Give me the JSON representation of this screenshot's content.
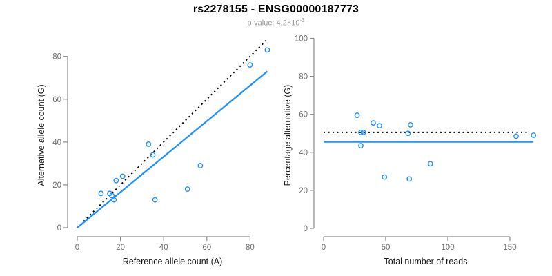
{
  "header": {
    "title": "rs2278155 - ENSG00000187773",
    "subtitle_text": "p-value: 4.2×10",
    "subtitle_superscript": "-3"
  },
  "colors": {
    "accent_blue": "#1E90FF",
    "dotted_black": "#000000",
    "axis_gray": "#8c8c8c",
    "tick_label_gray": "#6e6e6e",
    "axis_title_color": "#1a1a1a",
    "background": "#ffffff"
  },
  "chart_data": [
    {
      "type": "scatter",
      "panel": "left",
      "xlabel": "Reference allele count (A)",
      "ylabel": "Alternative allele count (G)",
      "xlim": [
        0,
        92
      ],
      "ylim": [
        0,
        88
      ],
      "xticks": [
        0,
        20,
        40,
        60,
        80
      ],
      "yticks": [
        0,
        20,
        40,
        60,
        80
      ],
      "grid": false,
      "legend": null,
      "marker": "open-circle",
      "points": [
        [
          11,
          16
        ],
        [
          15,
          16
        ],
        [
          16,
          15
        ],
        [
          17,
          13
        ],
        [
          18,
          22
        ],
        [
          21,
          24
        ],
        [
          33,
          39
        ],
        [
          35,
          34
        ],
        [
          36,
          13
        ],
        [
          51,
          18
        ],
        [
          57,
          29
        ],
        [
          80,
          76
        ],
        [
          88,
          83
        ]
      ],
      "lines": [
        {
          "id": "identity-line",
          "style": "dotted",
          "x1": 0,
          "y1": 0,
          "x2": 88,
          "y2": 88
        },
        {
          "id": "fit-line",
          "style": "solid",
          "x1": 0,
          "y1": 0,
          "x2": 88,
          "y2": 73
        }
      ]
    },
    {
      "type": "scatter",
      "panel": "right",
      "xlabel": "Total number of reads",
      "ylabel": "Percentage alternative (G)",
      "xlim": [
        0,
        171
      ],
      "ylim": [
        0,
        100
      ],
      "xticks": [
        0,
        50,
        100,
        150
      ],
      "yticks": [
        0,
        20,
        40,
        60,
        80,
        100
      ],
      "grid": false,
      "legend": null,
      "marker": "open-circle",
      "points": [
        [
          27,
          59.5
        ],
        [
          30,
          50.5
        ],
        [
          32,
          50.5
        ],
        [
          30,
          43.5
        ],
        [
          40,
          55.5
        ],
        [
          45,
          54
        ],
        [
          49,
          27
        ],
        [
          68,
          50
        ],
        [
          69,
          26
        ],
        [
          70,
          54.5
        ],
        [
          86,
          34
        ],
        [
          155,
          48.5
        ],
        [
          169,
          49
        ]
      ],
      "lines": [
        {
          "id": "expected-50pct-line",
          "style": "dotted",
          "x1": 0,
          "y1": 50.5,
          "x2": 166,
          "y2": 50.5
        },
        {
          "id": "fit-line",
          "style": "solid",
          "x1": 0,
          "y1": 45.5,
          "x2": 169,
          "y2": 45.5
        }
      ]
    }
  ]
}
